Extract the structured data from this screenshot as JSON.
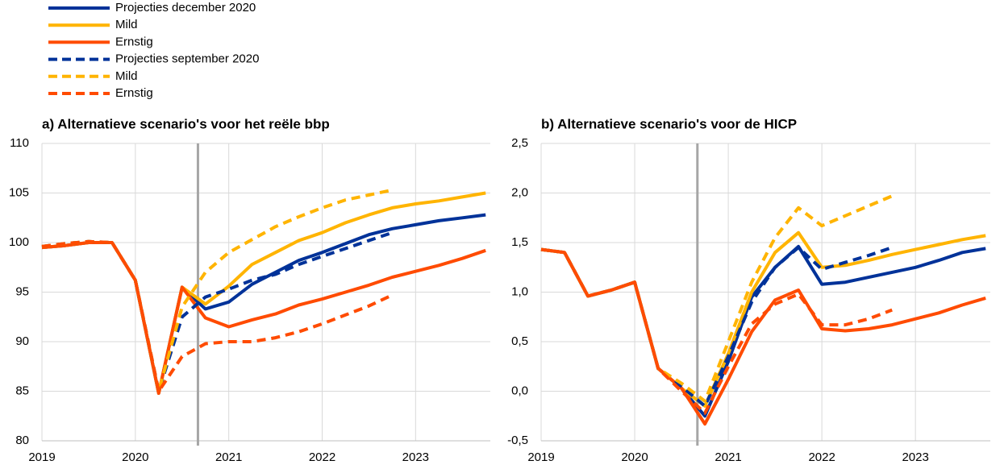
{
  "chart_data": [
    {
      "type": "line",
      "title": "a) Alternatieve scenario's voor het reële bbp",
      "x": [
        2019,
        2019.25,
        2019.5,
        2019.75,
        2020,
        2020.25,
        2020.5,
        2020.75,
        2021,
        2021.25,
        2021.5,
        2021.75,
        2022,
        2022.25,
        2022.5,
        2022.75,
        2023,
        2023.25,
        2023.5,
        2023.75
      ],
      "xlim": [
        2019,
        2023.8
      ],
      "xticks": [
        2019,
        2020,
        2021,
        2022,
        2023
      ],
      "ylim": [
        80,
        110
      ],
      "yticks": [
        80,
        85,
        90,
        95,
        100,
        105,
        110
      ],
      "grid": true,
      "vline": 2020.67,
      "series": [
        {
          "name": "Projecties december 2020",
          "color": "#003299",
          "dashed": false,
          "values": [
            99.5,
            99.7,
            100,
            100,
            96.2,
            84.8,
            95.5,
            93.3,
            94,
            95.8,
            97,
            98.2,
            99,
            99.9,
            100.8,
            101.4,
            101.8,
            102.2,
            102.5,
            102.8
          ]
        },
        {
          "name": "Mild",
          "color": "#ffb400",
          "dashed": false,
          "values": [
            99.5,
            99.7,
            100,
            100,
            96.2,
            84.8,
            95.5,
            93.8,
            95.6,
            97.8,
            99,
            100.2,
            101,
            102,
            102.8,
            103.5,
            103.9,
            104.2,
            104.6,
            105
          ]
        },
        {
          "name": "Ernstig",
          "color": "#ff4b00",
          "dashed": false,
          "values": [
            99.5,
            99.7,
            100,
            100,
            96.2,
            84.8,
            95.5,
            92.4,
            91.5,
            92.2,
            92.8,
            93.7,
            94.3,
            95,
            95.7,
            96.5,
            97.1,
            97.7,
            98.4,
            99.2
          ]
        },
        {
          "name": "Projecties september 2020",
          "color": "#003299",
          "dashed": true,
          "values": [
            99.6,
            99.9,
            100.1,
            100,
            96.2,
            85,
            92.5,
            94.5,
            95.3,
            96.2,
            96.8,
            97.8,
            98.6,
            99.4,
            100.2,
            101,
            null,
            null,
            null,
            null
          ]
        },
        {
          "name": "Mild",
          "color": "#ffb400",
          "dashed": true,
          "values": [
            99.6,
            99.9,
            100.1,
            100,
            96.2,
            85,
            93.5,
            97,
            99,
            100.3,
            101.6,
            102.6,
            103.5,
            104.3,
            104.8,
            105.3,
            null,
            null,
            null,
            null
          ]
        },
        {
          "name": "Ernstig",
          "color": "#ff4b00",
          "dashed": true,
          "values": [
            99.6,
            99.9,
            100.1,
            100,
            96.2,
            85,
            88.5,
            89.8,
            90,
            90,
            90.4,
            91,
            91.8,
            92.7,
            93.6,
            94.7,
            null,
            null,
            null,
            null
          ]
        }
      ]
    },
    {
      "type": "line",
      "title": "b) Alternatieve scenario's voor de HICP",
      "x": [
        2019,
        2019.25,
        2019.5,
        2019.75,
        2020,
        2020.25,
        2020.5,
        2020.75,
        2021,
        2021.25,
        2021.5,
        2021.75,
        2022,
        2022.25,
        2022.5,
        2022.75,
        2023,
        2023.25,
        2023.5,
        2023.75
      ],
      "xlim": [
        2019,
        2023.8
      ],
      "xticks": [
        2019,
        2020,
        2021,
        2022,
        2023
      ],
      "ylim": [
        -0.5,
        2.5
      ],
      "yticks": [
        {
          "value": -0.5,
          "label": "-0,5"
        },
        {
          "value": 0,
          "label": "0,0"
        },
        {
          "value": 0.5,
          "label": "0,5"
        },
        {
          "value": 1,
          "label": "1,0"
        },
        {
          "value": 1.5,
          "label": "1,5"
        },
        {
          "value": 2,
          "label": "2,0"
        },
        {
          "value": 2.5,
          "label": "2,5"
        }
      ],
      "grid": true,
      "vline": 2020.67,
      "series": [
        {
          "color": "#003299",
          "dashed": false,
          "values": [
            1.43,
            1.4,
            0.96,
            1.02,
            1.1,
            0.23,
            0.03,
            -0.25,
            0.3,
            0.95,
            1.25,
            1.46,
            1.08,
            1.1,
            1.15,
            1.2,
            1.25,
            1.32,
            1.4,
            1.44
          ]
        },
        {
          "color": "#ffb400",
          "dashed": false,
          "values": [
            1.43,
            1.4,
            0.96,
            1.02,
            1.1,
            0.23,
            0.03,
            -0.15,
            0.38,
            1.0,
            1.4,
            1.6,
            1.25,
            1.27,
            1.32,
            1.38,
            1.43,
            1.48,
            1.53,
            1.57
          ]
        },
        {
          "color": "#ff4b00",
          "dashed": false,
          "values": [
            1.43,
            1.4,
            0.96,
            1.02,
            1.1,
            0.23,
            0.03,
            -0.33,
            0.12,
            0.6,
            0.92,
            1.02,
            0.63,
            0.61,
            0.63,
            0.67,
            0.73,
            0.79,
            0.87,
            0.94
          ]
        },
        {
          "color": "#003299",
          "dashed": true,
          "values": [
            1.43,
            1.4,
            0.96,
            1.02,
            1.1,
            0.23,
            0.05,
            -0.15,
            0.35,
            0.9,
            1.25,
            1.45,
            1.23,
            1.3,
            1.37,
            1.45,
            null,
            null,
            null,
            null
          ]
        },
        {
          "color": "#ffb400",
          "dashed": true,
          "values": [
            1.43,
            1.4,
            0.96,
            1.02,
            1.1,
            0.23,
            0.08,
            -0.1,
            0.5,
            1.1,
            1.55,
            1.85,
            1.67,
            1.77,
            1.87,
            1.97,
            null,
            null,
            null,
            null
          ]
        },
        {
          "color": "#ff4b00",
          "dashed": true,
          "values": [
            1.43,
            1.4,
            0.96,
            1.02,
            1.1,
            0.23,
            0.0,
            -0.22,
            0.25,
            0.68,
            0.88,
            0.98,
            0.67,
            0.67,
            0.73,
            0.82,
            null,
            null,
            null,
            null
          ]
        }
      ]
    }
  ]
}
